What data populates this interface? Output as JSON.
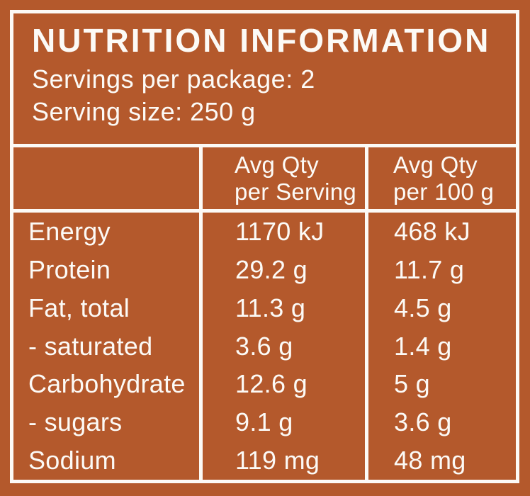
{
  "colors": {
    "background": "#B4592C",
    "text": "#FCFAF6",
    "lines": "#FCFAF6"
  },
  "header": {
    "title": "NUTRITION INFORMATION",
    "servings_per_package": "Servings per package: 2",
    "serving_size": "Serving size: 250 g"
  },
  "table": {
    "columns": [
      {
        "line1": "",
        "line2": ""
      },
      {
        "line1": "Avg Qty",
        "line2": "per Serving"
      },
      {
        "line1": "Avg Qty",
        "line2": "per 100 g"
      }
    ],
    "rows": [
      {
        "nutrient": "Energy",
        "per_serving": "1170 kJ",
        "per_100g": "468 kJ"
      },
      {
        "nutrient": "Protein",
        "per_serving": "29.2 g",
        "per_100g": "11.7 g"
      },
      {
        "nutrient": "Fat, total",
        "per_serving": "11.3 g",
        "per_100g": "4.5 g"
      },
      {
        "nutrient": "- saturated",
        "per_serving": "3.6 g",
        "per_100g": "1.4 g"
      },
      {
        "nutrient": "Carbohydrate",
        "per_serving": "12.6 g",
        "per_100g": "5 g"
      },
      {
        "nutrient": "- sugars",
        "per_serving": "9.1 g",
        "per_100g": "3.6 g"
      },
      {
        "nutrient": "Sodium",
        "per_serving": "119 mg",
        "per_100g": "48 mg"
      }
    ]
  }
}
